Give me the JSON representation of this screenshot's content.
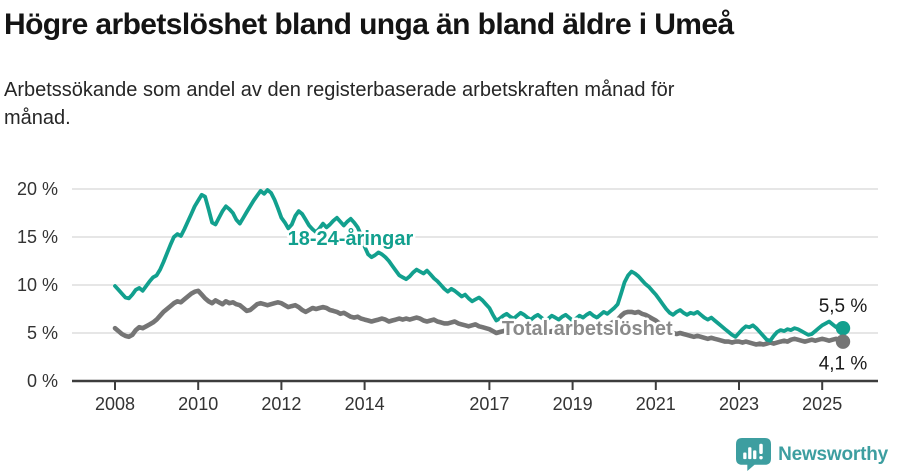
{
  "header": {
    "title": "Högre arbetslöshet bland unga än bland äldre i Umeå",
    "subtitle": "Arbetssökande som andel av den registerbaserade arbetskraften månad för\nmånad."
  },
  "chart_data": {
    "type": "line",
    "title": "Högre arbetslöshet bland unga än bland äldre i Umeå",
    "xlabel": "",
    "ylabel": "",
    "x_start_year": 2008,
    "months_per_point": 1,
    "x_tick_years": [
      2008,
      2010,
      2012,
      2014,
      2017,
      2019,
      2021,
      2023,
      2025
    ],
    "y_ticks": [
      0,
      5,
      10,
      15,
      20
    ],
    "y_tick_suffix": " %",
    "ylim": [
      0,
      22
    ],
    "grid": true,
    "legend_position": "inline-labels",
    "series": [
      {
        "name": "18-24-åringar",
        "color": "#12a08e",
        "label_color": "#12a08e",
        "label_x": 2012.15,
        "label_y": 14.9,
        "end_label": "5,5 %",
        "end_label_position": "above",
        "line_width": 3.8,
        "values": [
          9.9,
          9.5,
          9.1,
          8.7,
          8.6,
          9.0,
          9.5,
          9.7,
          9.4,
          9.9,
          10.4,
          10.8,
          11.0,
          11.6,
          12.4,
          13.3,
          14.2,
          15.0,
          15.3,
          15.1,
          15.8,
          16.6,
          17.4,
          18.2,
          18.8,
          19.4,
          19.2,
          17.9,
          16.5,
          16.3,
          17.0,
          17.7,
          18.2,
          17.9,
          17.5,
          16.8,
          16.4,
          17.0,
          17.6,
          18.2,
          18.8,
          19.3,
          19.8,
          19.5,
          19.9,
          19.6,
          18.9,
          18.0,
          17.0,
          16.5,
          15.9,
          16.3,
          17.2,
          17.7,
          17.4,
          16.8,
          16.2,
          15.8,
          15.5,
          15.9,
          16.4,
          16.0,
          16.3,
          16.7,
          17.0,
          16.6,
          16.2,
          16.6,
          16.9,
          16.5,
          16.0,
          15.2,
          14.0,
          13.2,
          12.9,
          13.1,
          13.4,
          13.2,
          12.9,
          12.5,
          12.0,
          11.5,
          11.0,
          10.8,
          10.6,
          10.9,
          11.3,
          11.6,
          11.4,
          11.2,
          11.5,
          11.1,
          10.7,
          10.4,
          10.0,
          9.6,
          9.3,
          9.6,
          9.4,
          9.1,
          8.8,
          9.0,
          8.6,
          8.3,
          8.5,
          8.7,
          8.4,
          8.0,
          7.6,
          6.9,
          6.3,
          6.5,
          6.8,
          7.0,
          6.7,
          6.5,
          6.8,
          7.1,
          6.9,
          6.6,
          6.4,
          6.7,
          6.9,
          6.6,
          6.3,
          6.5,
          6.8,
          6.6,
          6.4,
          6.7,
          6.9,
          6.6,
          6.3,
          6.5,
          6.8,
          6.6,
          6.9,
          7.1,
          6.8,
          6.6,
          6.9,
          7.2,
          7.0,
          7.3,
          7.6,
          8.0,
          9.1,
          10.3,
          11.0,
          11.4,
          11.2,
          10.9,
          10.5,
          10.1,
          9.8,
          9.4,
          9.0,
          8.5,
          8.0,
          7.5,
          7.1,
          6.9,
          7.2,
          7.4,
          7.1,
          6.9,
          7.1,
          7.0,
          7.2,
          6.9,
          6.6,
          6.4,
          6.6,
          6.3,
          6.0,
          5.7,
          5.4,
          5.1,
          4.8,
          4.6,
          5.0,
          5.4,
          5.7,
          5.6,
          5.8,
          5.5,
          5.1,
          4.7,
          4.3,
          4.2,
          4.7,
          5.1,
          5.3,
          5.2,
          5.4,
          5.3,
          5.5,
          5.4,
          5.2,
          5.0,
          4.8,
          4.9,
          5.2,
          5.5,
          5.8,
          6.0,
          6.2,
          5.9,
          5.6,
          5.9,
          5.5
        ]
      },
      {
        "name": "Total arbetslöshet",
        "color": "#757575",
        "label_color": "#8a8a8a",
        "label_x": 2017.3,
        "label_y": 5.5,
        "end_label": "4,1 %",
        "end_label_position": "below",
        "line_width": 4.6,
        "values": [
          5.5,
          5.2,
          4.9,
          4.7,
          4.6,
          4.8,
          5.3,
          5.6,
          5.5,
          5.7,
          5.9,
          6.1,
          6.4,
          6.8,
          7.2,
          7.5,
          7.8,
          8.1,
          8.3,
          8.2,
          8.5,
          8.8,
          9.1,
          9.3,
          9.4,
          9.0,
          8.6,
          8.3,
          8.1,
          8.4,
          8.2,
          8.0,
          8.3,
          8.1,
          8.2,
          8.0,
          7.9,
          7.6,
          7.3,
          7.4,
          7.7,
          8.0,
          8.1,
          8.0,
          7.9,
          8.0,
          8.1,
          8.2,
          8.1,
          7.9,
          7.7,
          7.8,
          7.9,
          7.7,
          7.4,
          7.2,
          7.4,
          7.6,
          7.5,
          7.6,
          7.7,
          7.6,
          7.4,
          7.3,
          7.2,
          7.0,
          7.1,
          6.9,
          6.7,
          6.6,
          6.7,
          6.5,
          6.4,
          6.3,
          6.2,
          6.3,
          6.4,
          6.5,
          6.4,
          6.2,
          6.3,
          6.4,
          6.5,
          6.4,
          6.5,
          6.4,
          6.5,
          6.6,
          6.5,
          6.3,
          6.2,
          6.3,
          6.4,
          6.2,
          6.1,
          6.0,
          6.0,
          6.1,
          6.2,
          6.0,
          5.9,
          5.8,
          5.7,
          5.8,
          5.9,
          5.7,
          5.6,
          5.5,
          5.4,
          5.2,
          5.0,
          5.1,
          5.2,
          5.3,
          5.2,
          5.1,
          5.2,
          5.3,
          5.2,
          5.1,
          5.0,
          5.1,
          5.2,
          5.1,
          5.0,
          5.1,
          5.2,
          5.1,
          5.0,
          5.1,
          5.2,
          5.1,
          5.2,
          5.3,
          5.4,
          5.3,
          5.4,
          5.5,
          5.4,
          5.5,
          5.6,
          5.7,
          5.8,
          6.0,
          6.2,
          6.4,
          6.8,
          7.1,
          7.2,
          7.2,
          7.1,
          7.2,
          7.0,
          6.9,
          6.7,
          6.5,
          6.3,
          6.0,
          5.7,
          5.4,
          5.2,
          5.0,
          4.9,
          5.0,
          4.9,
          4.8,
          4.7,
          4.6,
          4.7,
          4.6,
          4.5,
          4.4,
          4.5,
          4.4,
          4.3,
          4.2,
          4.1,
          4.1,
          4.0,
          4.1,
          4.1,
          4.0,
          4.1,
          4.0,
          3.9,
          3.8,
          3.9,
          3.8,
          3.9,
          4.0,
          3.9,
          4.0,
          4.1,
          4.2,
          4.1,
          4.3,
          4.4,
          4.3,
          4.2,
          4.1,
          4.2,
          4.3,
          4.2,
          4.3,
          4.4,
          4.3,
          4.2,
          4.3,
          4.4,
          4.2,
          4.1
        ]
      }
    ]
  },
  "footer": {
    "brand": "Newsworthy",
    "logo_icon": "bar-chart-speech-bubble-icon",
    "brand_color": "#3d9ea0"
  },
  "colors": {
    "grid": "#d8d8d8",
    "axis": "#3d3d3d",
    "tick_label": "#333333",
    "end_label": "#1a1a1a"
  }
}
